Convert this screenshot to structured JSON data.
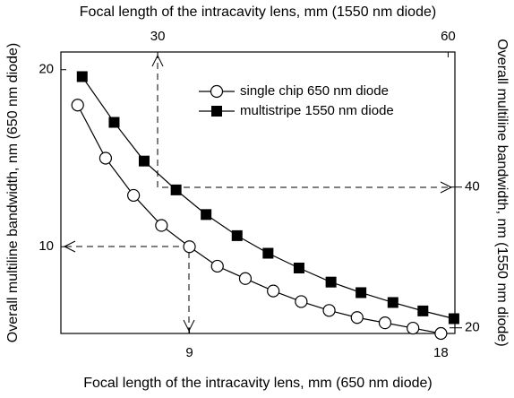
{
  "chart_data": {
    "type": "line",
    "x_label": "Focal length of the intracavity lens, mm (650 nm diode)",
    "x2_label": "Focal length of the intracavity lens, mm (1550 nm diode)",
    "y_label": "Overall multiline bandwidth, nm (650 nm diode)",
    "y2_label": "Overall multiline bandwidth, nm (1550 nm diode)",
    "xlim": [
      4.4,
      18.5
    ],
    "xticks": [
      9,
      18
    ],
    "x2lim": [
      20,
      60.7
    ],
    "x2ticks": [
      30,
      60
    ],
    "ylim": [
      5.1,
      21
    ],
    "yticks": [
      10,
      20
    ],
    "y2lim": [
      19.2,
      59.2
    ],
    "y2ticks": [
      20,
      40
    ],
    "legend": "upper right",
    "series": [
      {
        "name": "single chip 650 nm diode",
        "color": "#000000",
        "marker": "circle-open",
        "x": [
          5,
          6,
          7,
          8,
          9,
          10,
          11,
          12,
          13,
          14,
          15,
          16,
          17,
          18
        ],
        "values": [
          18.0,
          15.0,
          12.9,
          11.2,
          10.0,
          8.9,
          8.2,
          7.5,
          6.9,
          6.4,
          6.0,
          5.7,
          5.4,
          5.1
        ]
      },
      {
        "name": "multistripe 1550 nm diode",
        "color": "#000000",
        "marker": "square-filled",
        "axis": "y2",
        "xaxis": "x2",
        "x": [
          22.2,
          25.5,
          28.6,
          31.9,
          35.0,
          38.2,
          41.4,
          44.6,
          47.9,
          51.0,
          54.3,
          57.4,
          60.6
        ],
        "values": [
          55.7,
          49.2,
          43.7,
          39.6,
          36.1,
          33.1,
          30.6,
          28.5,
          26.5,
          25.0,
          23.6,
          22.4,
          21.3
        ]
      }
    ]
  }
}
